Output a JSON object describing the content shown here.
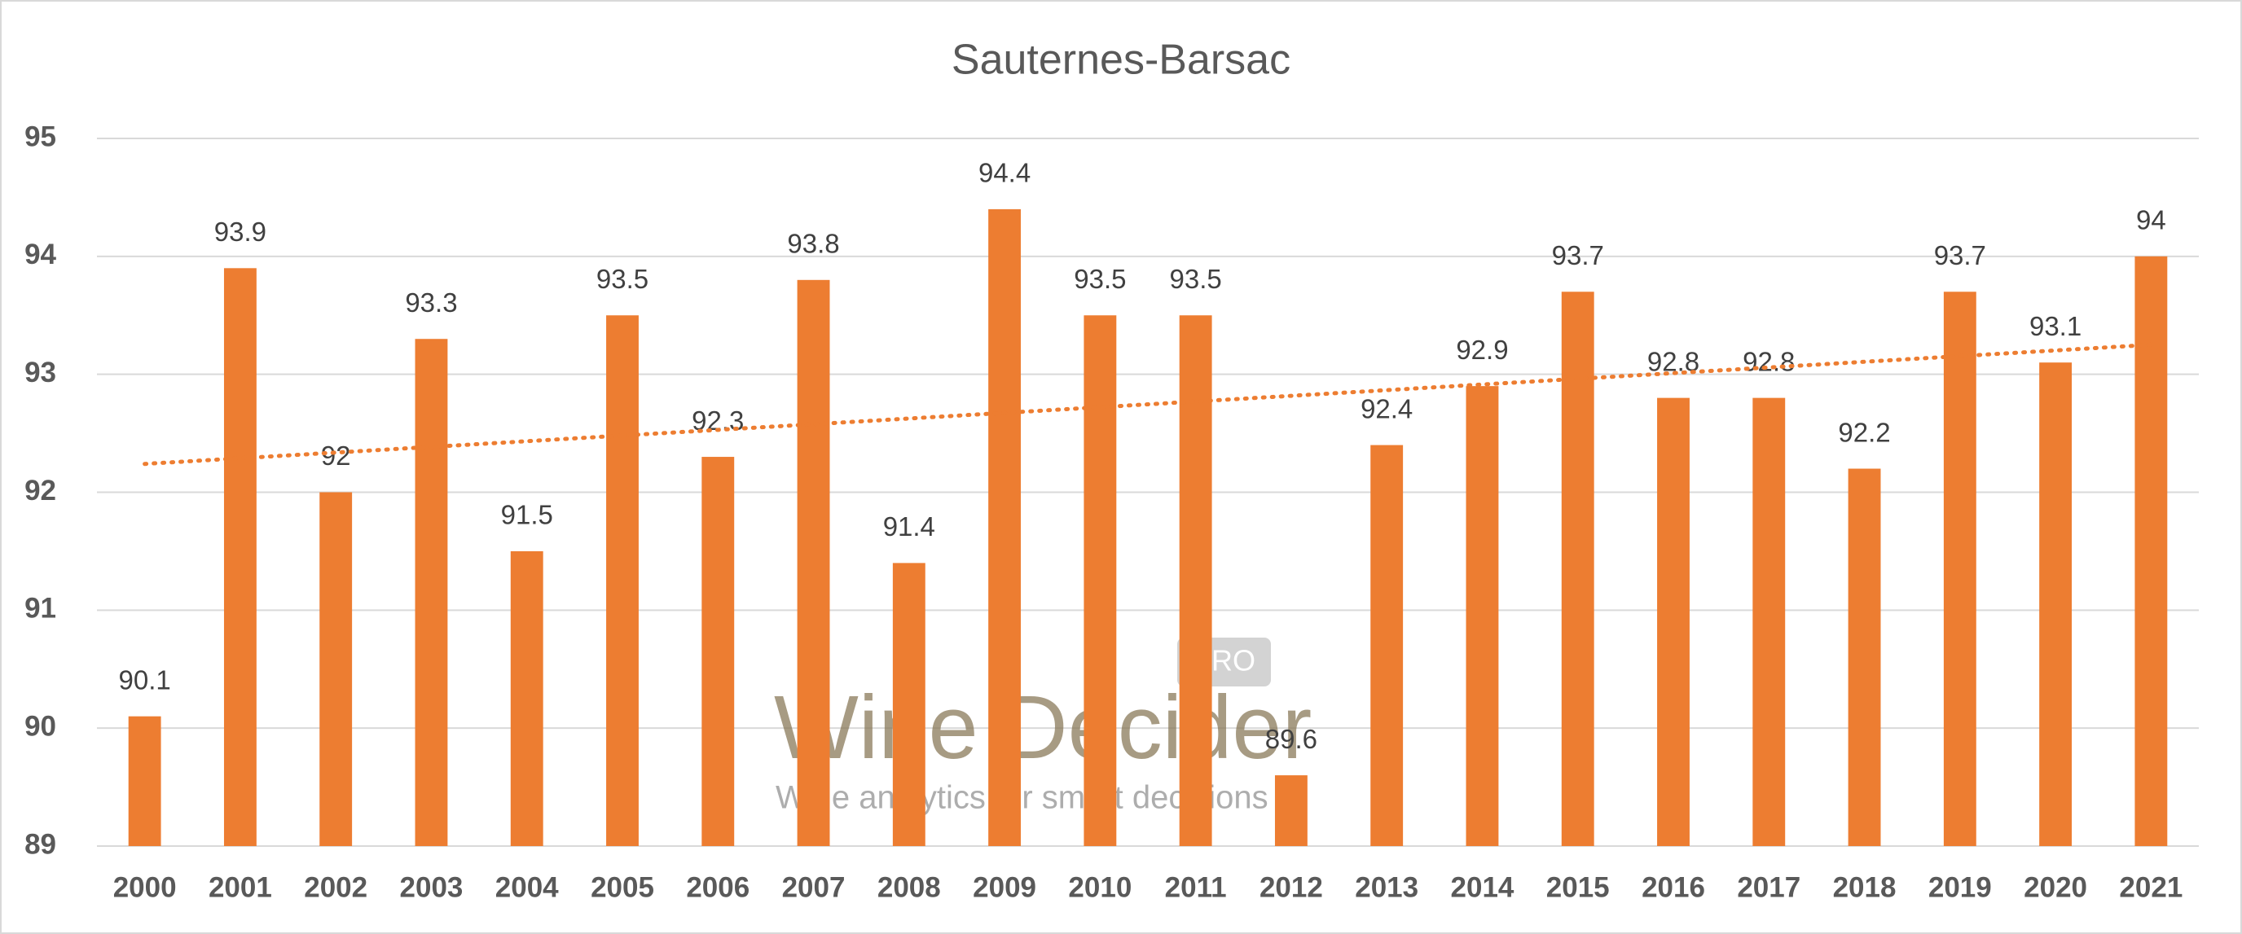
{
  "chart_data": {
    "type": "bar",
    "title": "Sauternes-Barsac",
    "categories": [
      "2000",
      "2001",
      "2002",
      "2003",
      "2004",
      "2005",
      "2006",
      "2007",
      "2008",
      "2009",
      "2010",
      "2011",
      "2012",
      "2013",
      "2014",
      "2015",
      "2016",
      "2017",
      "2018",
      "2019",
      "2020",
      "2021"
    ],
    "values": [
      90.1,
      93.9,
      92,
      93.3,
      91.5,
      93.5,
      92.3,
      93.8,
      91.4,
      94.4,
      93.5,
      93.5,
      89.6,
      92.4,
      92.9,
      93.7,
      92.8,
      92.8,
      92.2,
      93.7,
      93.1,
      94
    ],
    "color": "#ed7d31",
    "ylim": [
      89,
      95
    ],
    "yticks": [
      89,
      90,
      91,
      92,
      93,
      94,
      95
    ],
    "grid": true,
    "trendline": "linear",
    "watermark": {
      "brand": "Wine Decider",
      "badge": "PRO",
      "tagline": "Wine analytics for smart decisions"
    }
  }
}
